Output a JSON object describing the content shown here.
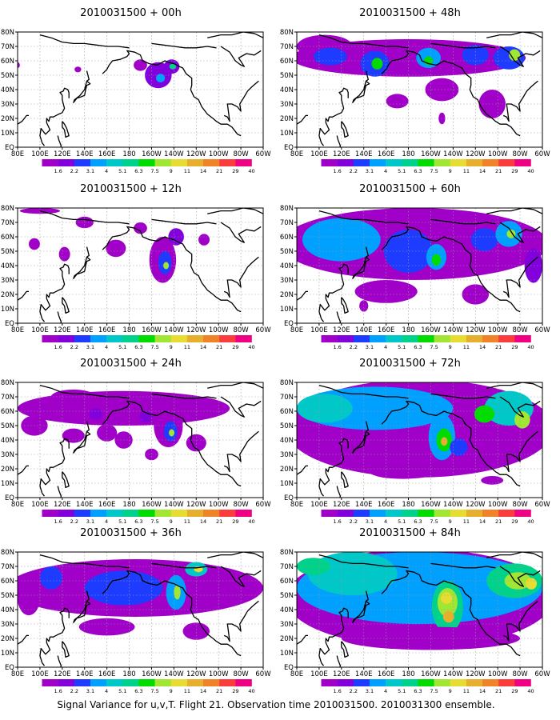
{
  "figure": {
    "caption": "Signal Variance for u,v,T. Flight 21. Observation time 2010031500. 2010031300 ensemble."
  },
  "axes": {
    "lon_labels": [
      "80E",
      "100E",
      "120E",
      "140E",
      "160E",
      "180",
      "160W",
      "140W",
      "120W",
      "100W",
      "80W",
      "60W"
    ],
    "lat_labels": [
      "80N",
      "70N",
      "60N",
      "50N",
      "40N",
      "30N",
      "20N",
      "10N",
      "EQ"
    ],
    "lon_range": [
      80,
      300
    ],
    "lat_range": [
      0,
      80
    ]
  },
  "colorbar": {
    "levels": [
      "1.6",
      "2.2",
      "3.1",
      "4",
      "5.1",
      "6.3",
      "7.5",
      "9",
      "11",
      "14",
      "21",
      "29",
      "40"
    ],
    "colors": [
      "#a000c8",
      "#8200dc",
      "#1e3cff",
      "#00a0ff",
      "#00c8c8",
      "#00d28c",
      "#00dc00",
      "#a0e632",
      "#e6dc32",
      "#e6af2d",
      "#f08228",
      "#fa3c3c",
      "#f00082"
    ]
  },
  "panels": [
    {
      "title": "2010031500 + 00h",
      "col": 0,
      "row": 0,
      "blobs": [
        {
          "lon": 206,
          "lat": 50,
          "rx": 12,
          "ry": 9,
          "level": 1
        },
        {
          "lon": 208,
          "lat": 48,
          "rx": 4,
          "ry": 3,
          "level": 3
        },
        {
          "lon": 218,
          "lat": 56,
          "rx": 7,
          "ry": 5,
          "level": 1
        },
        {
          "lon": 219,
          "lat": 56,
          "rx": 3,
          "ry": 2,
          "level": 5
        },
        {
          "lon": 190,
          "lat": 57,
          "rx": 6,
          "ry": 4,
          "level": 0
        },
        {
          "lon": 134,
          "lat": 54,
          "rx": 3,
          "ry": 2,
          "level": 0
        },
        {
          "lon": 80,
          "lat": 57,
          "rx": 2,
          "ry": 2,
          "level": 0
        }
      ]
    },
    {
      "title": "2010031500 + 48h",
      "col": 1,
      "row": 0,
      "blobs": [
        {
          "lon": 180,
          "lat": 62,
          "rx": 105,
          "ry": 13,
          "level": 0
        },
        {
          "lon": 105,
          "lat": 70,
          "rx": 25,
          "ry": 8,
          "level": 0
        },
        {
          "lon": 110,
          "lat": 63,
          "rx": 15,
          "ry": 6,
          "level": 2
        },
        {
          "lon": 150,
          "lat": 58,
          "rx": 13,
          "ry": 9,
          "level": 2
        },
        {
          "lon": 152,
          "lat": 58,
          "rx": 5,
          "ry": 4,
          "level": 6
        },
        {
          "lon": 198,
          "lat": 62,
          "rx": 11,
          "ry": 7,
          "level": 3
        },
        {
          "lon": 198,
          "lat": 60,
          "rx": 4,
          "ry": 3,
          "level": 6
        },
        {
          "lon": 240,
          "lat": 64,
          "rx": 12,
          "ry": 7,
          "level": 2
        },
        {
          "lon": 270,
          "lat": 62,
          "rx": 14,
          "ry": 8,
          "level": 2
        },
        {
          "lon": 275,
          "lat": 64,
          "rx": 5,
          "ry": 4,
          "level": 7
        },
        {
          "lon": 210,
          "lat": 40,
          "rx": 15,
          "ry": 8,
          "level": 0
        },
        {
          "lon": 170,
          "lat": 32,
          "rx": 10,
          "ry": 5,
          "level": 0
        },
        {
          "lon": 255,
          "lat": 30,
          "rx": 12,
          "ry": 10,
          "level": 0
        },
        {
          "lon": 210,
          "lat": 20,
          "rx": 3,
          "ry": 4,
          "level": 0
        }
      ]
    },
    {
      "title": "2010031500 + 12h",
      "col": 0,
      "row": 1,
      "blobs": [
        {
          "lon": 210,
          "lat": 44,
          "rx": 12,
          "ry": 16,
          "level": 0
        },
        {
          "lon": 212,
          "lat": 42,
          "rx": 6,
          "ry": 8,
          "level": 2
        },
        {
          "lon": 213,
          "lat": 40,
          "rx": 2.5,
          "ry": 2.5,
          "level": 7
        },
        {
          "lon": 222,
          "lat": 60,
          "rx": 7,
          "ry": 6,
          "level": 1
        },
        {
          "lon": 168,
          "lat": 52,
          "rx": 9,
          "ry": 6,
          "level": 0
        },
        {
          "lon": 190,
          "lat": 66,
          "rx": 6,
          "ry": 4,
          "level": 0
        },
        {
          "lon": 122,
          "lat": 48,
          "rx": 5,
          "ry": 5,
          "level": 0
        },
        {
          "lon": 95,
          "lat": 55,
          "rx": 5,
          "ry": 4,
          "level": 0
        },
        {
          "lon": 247,
          "lat": 58,
          "rx": 5,
          "ry": 4,
          "level": 0
        },
        {
          "lon": 140,
          "lat": 70,
          "rx": 8,
          "ry": 4,
          "level": 0
        },
        {
          "lon": 100,
          "lat": 78,
          "rx": 18,
          "ry": 2,
          "level": 0
        }
      ]
    },
    {
      "title": "2010031500 + 60h",
      "col": 1,
      "row": 1,
      "blobs": [
        {
          "lon": 185,
          "lat": 55,
          "rx": 120,
          "ry": 25,
          "level": 0
        },
        {
          "lon": 120,
          "lat": 58,
          "rx": 35,
          "ry": 15,
          "level": 3
        },
        {
          "lon": 180,
          "lat": 50,
          "rx": 22,
          "ry": 15,
          "level": 2
        },
        {
          "lon": 205,
          "lat": 46,
          "rx": 9,
          "ry": 9,
          "level": 3
        },
        {
          "lon": 205,
          "lat": 44,
          "rx": 4,
          "ry": 4,
          "level": 6
        },
        {
          "lon": 248,
          "lat": 58,
          "rx": 12,
          "ry": 8,
          "level": 2
        },
        {
          "lon": 270,
          "lat": 62,
          "rx": 12,
          "ry": 9,
          "level": 3
        },
        {
          "lon": 272,
          "lat": 62,
          "rx": 4,
          "ry": 3,
          "level": 7
        },
        {
          "lon": 160,
          "lat": 22,
          "rx": 28,
          "ry": 8,
          "level": 0
        },
        {
          "lon": 240,
          "lat": 20,
          "rx": 12,
          "ry": 7,
          "level": 0
        },
        {
          "lon": 140,
          "lat": 12,
          "rx": 4,
          "ry": 4,
          "level": 0
        },
        {
          "lon": 292,
          "lat": 40,
          "rx": 8,
          "ry": 12,
          "level": 1
        }
      ]
    },
    {
      "title": "2010031500 + 24h",
      "col": 0,
      "row": 2,
      "blobs": [
        {
          "lon": 175,
          "lat": 62,
          "rx": 95,
          "ry": 12,
          "level": 0
        },
        {
          "lon": 215,
          "lat": 50,
          "rx": 13,
          "ry": 15,
          "level": 0
        },
        {
          "lon": 217,
          "lat": 46,
          "rx": 6,
          "ry": 7,
          "level": 2
        },
        {
          "lon": 218,
          "lat": 45,
          "rx": 2.5,
          "ry": 2.5,
          "level": 7
        },
        {
          "lon": 195,
          "lat": 56,
          "rx": 6,
          "ry": 4,
          "level": 1
        },
        {
          "lon": 95,
          "lat": 50,
          "rx": 12,
          "ry": 7,
          "level": 0
        },
        {
          "lon": 130,
          "lat": 43,
          "rx": 10,
          "ry": 5,
          "level": 0
        },
        {
          "lon": 160,
          "lat": 45,
          "rx": 9,
          "ry": 6,
          "level": 0
        },
        {
          "lon": 175,
          "lat": 40,
          "rx": 8,
          "ry": 6,
          "level": 0
        },
        {
          "lon": 240,
          "lat": 38,
          "rx": 9,
          "ry": 6,
          "level": 0
        },
        {
          "lon": 200,
          "lat": 30,
          "rx": 6,
          "ry": 4,
          "level": 0
        },
        {
          "lon": 150,
          "lat": 58,
          "rx": 6,
          "ry": 4,
          "level": 1
        },
        {
          "lon": 130,
          "lat": 70,
          "rx": 20,
          "ry": 5,
          "level": 0
        }
      ]
    },
    {
      "title": "2010031500 + 72h",
      "col": 1,
      "row": 2,
      "blobs": [
        {
          "lon": 190,
          "lat": 48,
          "rx": 120,
          "ry": 34,
          "level": 0
        },
        {
          "lon": 150,
          "lat": 62,
          "rx": 70,
          "ry": 15,
          "level": 3
        },
        {
          "lon": 105,
          "lat": 62,
          "rx": 25,
          "ry": 10,
          "level": 4
        },
        {
          "lon": 210,
          "lat": 42,
          "rx": 12,
          "ry": 16,
          "level": 3
        },
        {
          "lon": 212,
          "lat": 40,
          "rx": 7,
          "ry": 8,
          "level": 6
        },
        {
          "lon": 212,
          "lat": 39,
          "rx": 3,
          "ry": 3,
          "level": 9
        },
        {
          "lon": 270,
          "lat": 62,
          "rx": 22,
          "ry": 12,
          "level": 4
        },
        {
          "lon": 282,
          "lat": 54,
          "rx": 7,
          "ry": 6,
          "level": 7
        },
        {
          "lon": 248,
          "lat": 58,
          "rx": 9,
          "ry": 6,
          "level": 6
        },
        {
          "lon": 175,
          "lat": 18,
          "rx": 30,
          "ry": 5,
          "level": 0
        },
        {
          "lon": 255,
          "lat": 12,
          "rx": 10,
          "ry": 3,
          "level": 0
        },
        {
          "lon": 225,
          "lat": 35,
          "rx": 8,
          "ry": 6,
          "level": 2
        }
      ]
    },
    {
      "title": "2010031500 + 36h",
      "col": 0,
      "row": 3,
      "blobs": [
        {
          "lon": 185,
          "lat": 55,
          "rx": 115,
          "ry": 20,
          "level": 0
        },
        {
          "lon": 175,
          "lat": 55,
          "rx": 35,
          "ry": 12,
          "level": 2
        },
        {
          "lon": 222,
          "lat": 52,
          "rx": 9,
          "ry": 12,
          "level": 3
        },
        {
          "lon": 223,
          "lat": 52,
          "rx": 3,
          "ry": 5,
          "level": 7
        },
        {
          "lon": 240,
          "lat": 68,
          "rx": 10,
          "ry": 5,
          "level": 4
        },
        {
          "lon": 242,
          "lat": 68,
          "rx": 4,
          "ry": 2,
          "level": 8
        },
        {
          "lon": 90,
          "lat": 48,
          "rx": 10,
          "ry": 12,
          "level": 0
        },
        {
          "lon": 160,
          "lat": 28,
          "rx": 25,
          "ry": 6,
          "level": 0
        },
        {
          "lon": 240,
          "lat": 25,
          "rx": 12,
          "ry": 6,
          "level": 0
        },
        {
          "lon": 110,
          "lat": 62,
          "rx": 10,
          "ry": 8,
          "level": 2
        }
      ]
    },
    {
      "title": "2010031500 + 84h",
      "col": 1,
      "row": 3,
      "blobs": [
        {
          "lon": 190,
          "lat": 48,
          "rx": 120,
          "ry": 34,
          "level": 0
        },
        {
          "lon": 190,
          "lat": 55,
          "rx": 110,
          "ry": 25,
          "level": 3
        },
        {
          "lon": 130,
          "lat": 65,
          "rx": 40,
          "ry": 15,
          "level": 4
        },
        {
          "lon": 95,
          "lat": 70,
          "rx": 15,
          "ry": 6,
          "level": 5
        },
        {
          "lon": 215,
          "lat": 42,
          "rx": 14,
          "ry": 18,
          "level": 5
        },
        {
          "lon": 215,
          "lat": 45,
          "rx": 9,
          "ry": 10,
          "level": 7
        },
        {
          "lon": 214,
          "lat": 48,
          "rx": 5,
          "ry": 4,
          "level": 8
        },
        {
          "lon": 216,
          "lat": 35,
          "rx": 5,
          "ry": 4,
          "level": 9
        },
        {
          "lon": 275,
          "lat": 60,
          "rx": 25,
          "ry": 12,
          "level": 5
        },
        {
          "lon": 278,
          "lat": 60,
          "rx": 12,
          "ry": 6,
          "level": 7
        },
        {
          "lon": 290,
          "lat": 58,
          "rx": 5,
          "ry": 4,
          "level": 8
        },
        {
          "lon": 200,
          "lat": 20,
          "rx": 80,
          "ry": 8,
          "level": 0
        }
      ]
    }
  ]
}
